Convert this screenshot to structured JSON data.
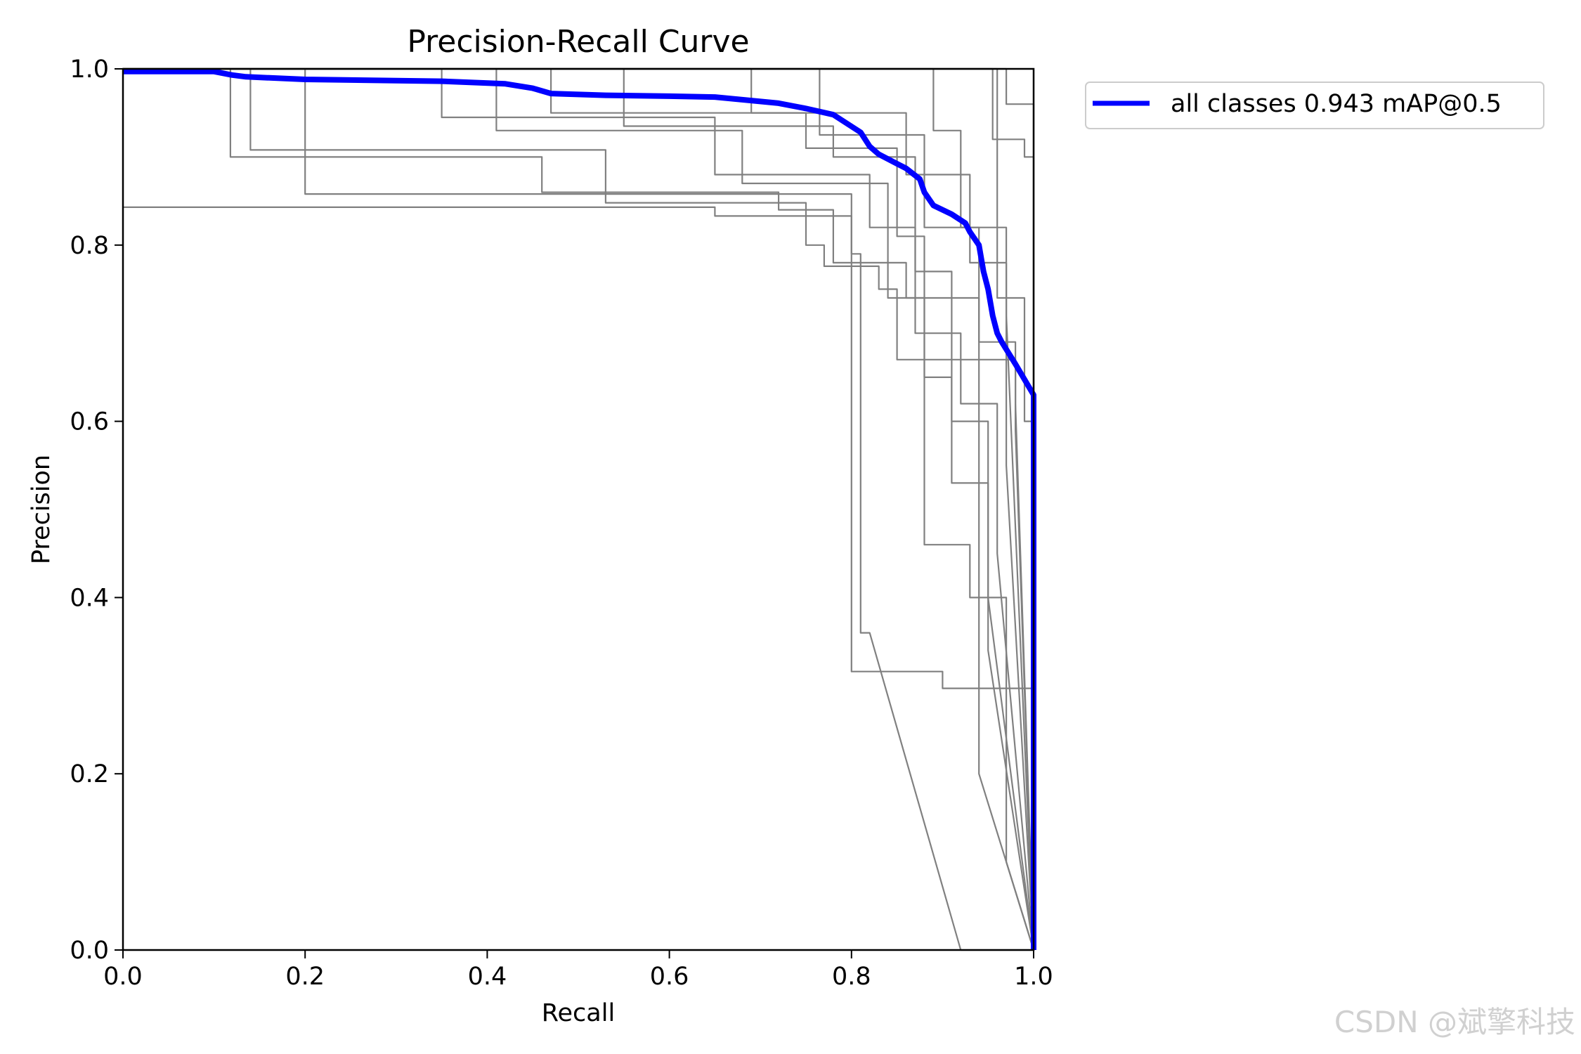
{
  "chart_data": {
    "type": "line",
    "title": "Precision-Recall Curve",
    "xlabel": "Recall",
    "ylabel": "Precision",
    "xlim": [
      0,
      1
    ],
    "ylim": [
      0,
      1
    ],
    "xticks": [
      "0.0",
      "0.2",
      "0.4",
      "0.6",
      "0.8",
      "1.0"
    ],
    "yticks": [
      "0.0",
      "0.2",
      "0.4",
      "0.6",
      "0.8",
      "1.0"
    ],
    "grid": false,
    "legend_position": "outside-top-right",
    "series": [
      {
        "name": "all classes 0.943 mAP@0.5",
        "color": "#0000ff",
        "x": [
          0.0,
          0.1,
          0.12,
          0.135,
          0.2,
          0.35,
          0.42,
          0.45,
          0.47,
          0.53,
          0.6,
          0.65,
          0.68,
          0.72,
          0.75,
          0.78,
          0.81,
          0.82,
          0.83,
          0.86,
          0.875,
          0.88,
          0.89,
          0.9,
          0.91,
          0.925,
          0.93,
          0.94,
          0.945,
          0.95,
          0.955,
          0.96,
          0.965,
          0.98,
          1.0,
          1.0
        ],
        "y": [
          0.997,
          0.997,
          0.993,
          0.991,
          0.988,
          0.986,
          0.983,
          0.978,
          0.972,
          0.97,
          0.969,
          0.968,
          0.965,
          0.961,
          0.955,
          0.948,
          0.928,
          0.912,
          0.903,
          0.887,
          0.875,
          0.86,
          0.845,
          0.84,
          0.835,
          0.825,
          0.815,
          0.8,
          0.77,
          0.75,
          0.72,
          0.7,
          0.69,
          0.665,
          0.63,
          0.0
        ]
      },
      {
        "color": "#808080",
        "x": [
          0.0,
          0.65,
          0.65,
          0.8,
          0.8,
          0.84,
          0.84,
          0.9,
          0.9,
          0.95,
          0.95,
          1.0,
          1.0
        ],
        "y": [
          0.843,
          0.843,
          0.833,
          0.833,
          0.316,
          0.316,
          0.316,
          0.316,
          0.297,
          0.297,
          0.297,
          0.297,
          0.0
        ]
      },
      {
        "color": "#808080",
        "x": [
          0.0,
          0.2,
          0.2,
          0.8,
          0.8,
          0.81,
          0.81,
          0.82,
          0.82,
          0.92,
          0.92,
          1.0,
          1.0
        ],
        "y": [
          1.0,
          1.0,
          0.858,
          0.858,
          0.79,
          0.79,
          0.36,
          0.36,
          0.36,
          0.0,
          0.0,
          0.0,
          0.0
        ]
      },
      {
        "color": "#808080",
        "x": [
          0.0,
          0.118,
          0.118,
          0.46,
          0.46,
          0.72,
          0.72,
          0.78,
          0.78,
          0.86,
          0.86,
          0.94,
          0.94,
          1.0
        ],
        "y": [
          1.0,
          1.0,
          0.9,
          0.9,
          0.86,
          0.86,
          0.84,
          0.84,
          0.78,
          0.78,
          0.74,
          0.74,
          0.2,
          0.0
        ]
      },
      {
        "color": "#808080",
        "x": [
          0.0,
          0.14,
          0.14,
          0.53,
          0.53,
          0.75,
          0.75,
          0.77,
          0.77,
          0.83,
          0.83,
          0.85,
          0.85,
          0.98,
          0.98,
          1.0
        ],
        "y": [
          1.0,
          1.0,
          0.908,
          0.908,
          0.848,
          0.848,
          0.8,
          0.8,
          0.776,
          0.776,
          0.75,
          0.75,
          0.67,
          0.67,
          0.59,
          0.0
        ]
      },
      {
        "color": "#808080",
        "x": [
          0.0,
          0.35,
          0.35,
          0.65,
          0.65,
          0.82,
          0.82,
          0.87,
          0.87,
          0.92,
          0.92,
          0.96,
          0.96,
          1.0
        ],
        "y": [
          1.0,
          1.0,
          0.945,
          0.945,
          0.88,
          0.88,
          0.82,
          0.82,
          0.7,
          0.7,
          0.62,
          0.62,
          0.45,
          0.0
        ]
      },
      {
        "color": "#808080",
        "x": [
          0.0,
          0.41,
          0.41,
          0.68,
          0.68,
          0.84,
          0.84,
          0.88,
          0.88,
          0.91,
          0.91,
          0.95,
          0.95,
          1.0
        ],
        "y": [
          1.0,
          1.0,
          0.93,
          0.93,
          0.87,
          0.87,
          0.74,
          0.74,
          0.65,
          0.65,
          0.53,
          0.53,
          0.34,
          0.0
        ]
      },
      {
        "color": "#808080",
        "x": [
          0.0,
          0.47,
          0.47,
          0.75,
          0.75,
          0.85,
          0.85,
          0.88,
          0.88,
          0.93,
          0.93,
          0.97,
          0.97,
          1.0
        ],
        "y": [
          1.0,
          1.0,
          0.95,
          0.95,
          0.91,
          0.91,
          0.81,
          0.81,
          0.46,
          0.46,
          0.4,
          0.4,
          0.1,
          0.0
        ]
      },
      {
        "color": "#808080",
        "x": [
          0.0,
          0.55,
          0.55,
          0.78,
          0.78,
          0.87,
          0.87,
          0.91,
          0.91,
          0.95,
          0.95,
          1.0
        ],
        "y": [
          1.0,
          1.0,
          0.935,
          0.935,
          0.9,
          0.9,
          0.77,
          0.77,
          0.6,
          0.6,
          0.4,
          0.0
        ]
      },
      {
        "color": "#808080",
        "x": [
          0.0,
          0.69,
          0.69,
          0.86,
          0.86,
          0.93,
          0.93,
          0.97,
          0.97,
          1.0
        ],
        "y": [
          1.0,
          1.0,
          0.95,
          0.95,
          0.88,
          0.88,
          0.78,
          0.78,
          0.55,
          0.0
        ]
      },
      {
        "color": "#808080",
        "x": [
          0.0,
          0.765,
          0.765,
          0.88,
          0.88,
          0.94,
          0.94,
          0.98,
          0.98,
          1.0
        ],
        "y": [
          1.0,
          1.0,
          0.925,
          0.925,
          0.82,
          0.82,
          0.69,
          0.69,
          0.62,
          0.0
        ]
      },
      {
        "color": "#808080",
        "x": [
          0.0,
          0.89,
          0.89,
          0.92,
          0.92,
          0.97,
          0.97,
          1.0
        ],
        "y": [
          1.0,
          1.0,
          0.93,
          0.93,
          0.82,
          0.82,
          0.72,
          0.0
        ]
      },
      {
        "color": "#808080",
        "x": [
          0.0,
          0.955,
          0.955,
          0.99,
          0.99,
          1.0,
          1.0
        ],
        "y": [
          1.0,
          1.0,
          0.92,
          0.92,
          0.9,
          0.9,
          0.0
        ]
      },
      {
        "color": "#808080",
        "x": [
          0.0,
          0.97,
          0.97,
          1.0,
          1.0
        ],
        "y": [
          1.0,
          1.0,
          0.96,
          0.96,
          0.0
        ]
      },
      {
        "color": "#808080",
        "x": [
          0.0,
          0.96,
          0.96,
          0.99,
          0.99,
          1.0,
          1.0
        ],
        "y": [
          1.0,
          1.0,
          0.74,
          0.74,
          0.6,
          0.6,
          0.0
        ]
      }
    ]
  },
  "watermark": "CSDN @斌擎科技"
}
